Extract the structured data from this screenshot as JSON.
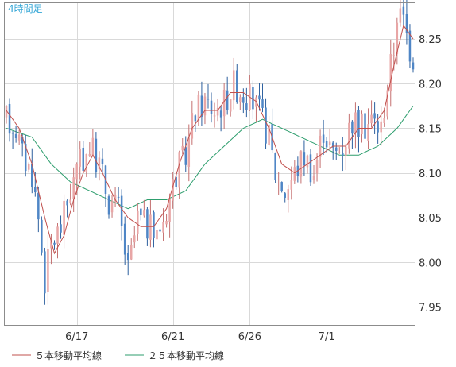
{
  "timeframe_label": "4時間足",
  "legend": [
    {
      "label": "５本移動平均線",
      "color": "#c0504d"
    },
    {
      "label": "２５本移動平均線",
      "color": "#2e9e6e"
    }
  ],
  "colors": {
    "up_candle": "#e8a6a6",
    "up_wick": "#c47070",
    "down_candle": "#4f86c6",
    "down_wick": "#2c5f9e",
    "grid": "#d9d9d9",
    "frame": "#8c8c8c"
  },
  "chart_data": {
    "type": "candlestick",
    "title": "",
    "xlabel": "",
    "ylabel": "",
    "ylim": [
      7.93,
      8.29
    ],
    "y_ticks": [
      8.25,
      8.2,
      8.15,
      8.1,
      8.05,
      8.0,
      7.95
    ],
    "y_tick_labels": [
      "8.25",
      "8.20",
      "8.15",
      "8.10",
      "8.05",
      "8.00",
      "7.95"
    ],
    "x_ticks": [
      {
        "index": 22,
        "label": "6/17"
      },
      {
        "index": 52,
        "label": "6/21"
      },
      {
        "index": 76,
        "label": "6/26"
      },
      {
        "index": 100,
        "label": "7/1"
      }
    ],
    "grid": true,
    "legend_position": "bottom-left",
    "candle_count": 128,
    "anchors": [
      [
        0,
        8.16
      ],
      [
        3,
        8.15
      ],
      [
        5,
        8.12
      ],
      [
        8,
        8.1
      ],
      [
        10,
        8.05
      ],
      [
        12,
        7.98
      ],
      [
        14,
        8.02
      ],
      [
        17,
        8.04
      ],
      [
        20,
        8.08
      ],
      [
        23,
        8.11
      ],
      [
        26,
        8.13
      ],
      [
        29,
        8.11
      ],
      [
        32,
        8.07
      ],
      [
        35,
        8.06
      ],
      [
        38,
        7.99
      ],
      [
        41,
        8.05
      ],
      [
        44,
        8.04
      ],
      [
        47,
        8.03
      ],
      [
        50,
        8.06
      ],
      [
        53,
        8.1
      ],
      [
        56,
        8.12
      ],
      [
        59,
        8.17
      ],
      [
        62,
        8.18
      ],
      [
        65,
        8.17
      ],
      [
        68,
        8.18
      ],
      [
        71,
        8.2
      ],
      [
        74,
        8.19
      ],
      [
        77,
        8.18
      ],
      [
        80,
        8.16
      ],
      [
        82,
        8.14
      ],
      [
        84,
        8.1
      ],
      [
        87,
        8.08
      ],
      [
        90,
        8.1
      ],
      [
        93,
        8.12
      ],
      [
        96,
        8.1
      ],
      [
        99,
        8.15
      ],
      [
        102,
        8.12
      ],
      [
        105,
        8.13
      ],
      [
        108,
        8.16
      ],
      [
        111,
        8.15
      ],
      [
        114,
        8.16
      ],
      [
        117,
        8.15
      ],
      [
        119,
        8.2
      ],
      [
        121,
        8.24
      ],
      [
        122,
        8.28
      ],
      [
        124,
        8.27
      ],
      [
        126,
        8.24
      ],
      [
        127,
        8.23
      ]
    ],
    "ma5_anchors": [
      [
        0,
        8.17
      ],
      [
        4,
        8.15
      ],
      [
        8,
        8.11
      ],
      [
        12,
        8.05
      ],
      [
        15,
        8.01
      ],
      [
        18,
        8.03
      ],
      [
        21,
        8.07
      ],
      [
        24,
        8.1
      ],
      [
        27,
        8.12
      ],
      [
        30,
        8.1
      ],
      [
        34,
        8.07
      ],
      [
        38,
        8.05
      ],
      [
        42,
        8.04
      ],
      [
        46,
        8.04
      ],
      [
        50,
        8.06
      ],
      [
        54,
        8.11
      ],
      [
        58,
        8.15
      ],
      [
        62,
        8.17
      ],
      [
        66,
        8.17
      ],
      [
        70,
        8.19
      ],
      [
        74,
        8.19
      ],
      [
        78,
        8.18
      ],
      [
        82,
        8.15
      ],
      [
        86,
        8.11
      ],
      [
        90,
        8.1
      ],
      [
        94,
        8.11
      ],
      [
        98,
        8.12
      ],
      [
        102,
        8.13
      ],
      [
        106,
        8.13
      ],
      [
        110,
        8.15
      ],
      [
        114,
        8.15
      ],
      [
        118,
        8.17
      ],
      [
        121,
        8.22
      ],
      [
        124,
        8.265
      ],
      [
        127,
        8.25
      ]
    ],
    "ma25_anchors": [
      [
        0,
        8.15
      ],
      [
        8,
        8.14
      ],
      [
        14,
        8.11
      ],
      [
        20,
        8.09
      ],
      [
        26,
        8.08
      ],
      [
        32,
        8.07
      ],
      [
        38,
        8.06
      ],
      [
        44,
        8.07
      ],
      [
        50,
        8.07
      ],
      [
        56,
        8.08
      ],
      [
        62,
        8.11
      ],
      [
        68,
        8.13
      ],
      [
        74,
        8.15
      ],
      [
        80,
        8.16
      ],
      [
        86,
        8.15
      ],
      [
        92,
        8.14
      ],
      [
        98,
        8.13
      ],
      [
        104,
        8.12
      ],
      [
        110,
        8.12
      ],
      [
        116,
        8.13
      ],
      [
        122,
        8.15
      ],
      [
        127,
        8.175
      ]
    ]
  }
}
